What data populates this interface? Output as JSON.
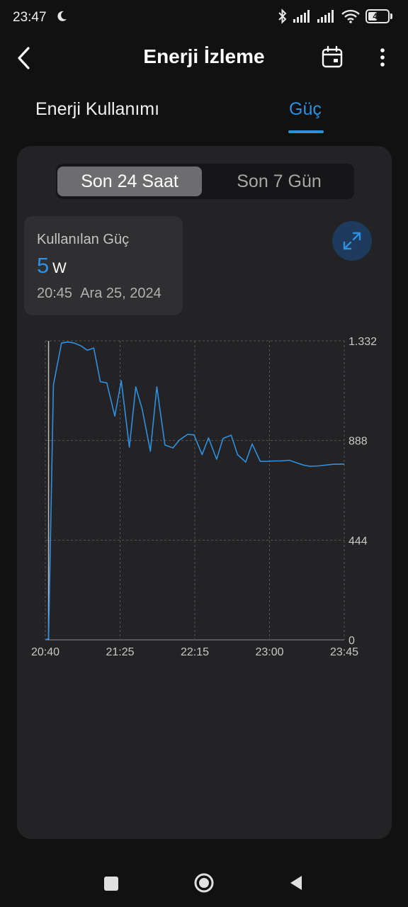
{
  "status_bar": {
    "time": "23:47",
    "battery_level": "48",
    "battery_fraction": 0.48,
    "icons": [
      "moon-icon",
      "bluetooth-icon",
      "signal-icon",
      "signal-icon",
      "wifi-icon",
      "battery-icon"
    ]
  },
  "header": {
    "title": "Enerji İzleme",
    "icons": [
      "back-icon",
      "calendar-icon",
      "more-icon"
    ]
  },
  "tabs": [
    {
      "label": "Enerji Kullanımı",
      "selected": false
    },
    {
      "label": "Güç",
      "selected": true
    }
  ],
  "range_selector": {
    "options": [
      "Son 24 Saat",
      "Son 7 Gün"
    ],
    "selected": "Son 24 Saat"
  },
  "tooltip": {
    "label": "Kullanılan Güç",
    "value": "5",
    "unit": "W",
    "time": "20:45",
    "date": "Ara 25, 2024"
  },
  "expand_icon": "expand-icon",
  "colors": {
    "accent": "#2f8fe0",
    "card_background": "#232325",
    "page_background": "#111111"
  },
  "chart_data": {
    "type": "line",
    "title": "",
    "xlabel": "",
    "ylabel": "",
    "x_tick_labels": [
      "20:40",
      "21:25",
      "22:15",
      "23:00",
      "23:45"
    ],
    "y_tick_labels": [
      "1.332",
      "888",
      "444",
      "0"
    ],
    "y_ticks": [
      1332,
      888,
      444,
      0
    ],
    "ylim": [
      0,
      1332
    ],
    "xlim_minutes": [
      0,
      185
    ],
    "grid": true,
    "y_axis_side": "right",
    "cursor_x_minutes": 2,
    "series": [
      {
        "color": "#2f8fe0",
        "x_minutes": [
          0,
          2,
          5,
          10,
          14,
          18,
          22,
          26,
          30,
          34,
          38,
          43,
          47,
          52,
          56,
          60,
          65,
          69,
          74,
          79,
          83,
          88,
          92,
          97,
          101,
          106,
          110,
          115,
          119,
          124,
          128,
          133,
          137,
          142,
          146,
          151,
          155,
          160,
          164,
          169,
          173,
          178,
          185
        ],
        "y_values": [
          0,
          5,
          1135,
          1322,
          1327,
          1322,
          1310,
          1290,
          1300,
          1150,
          1145,
          997,
          1155,
          858,
          1127,
          1025,
          840,
          1127,
          868,
          855,
          890,
          915,
          913,
          825,
          900,
          805,
          897,
          912,
          825,
          792,
          873,
          795,
          795,
          797,
          797,
          800,
          790,
          778,
          773,
          775,
          778,
          782,
          783
        ]
      }
    ]
  },
  "nav_bar": {
    "icons": [
      "recents-icon",
      "home-icon",
      "back-nav-icon"
    ]
  }
}
